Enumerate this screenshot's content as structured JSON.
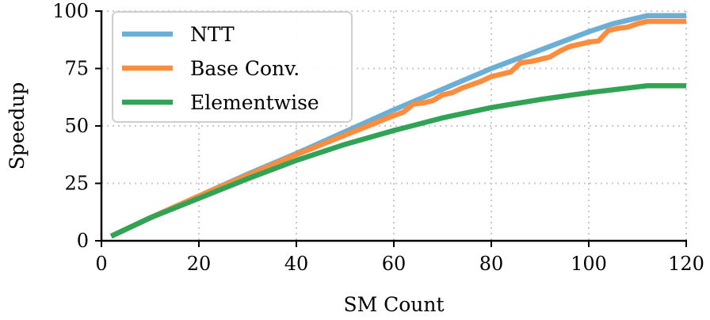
{
  "chart_data": {
    "type": "line",
    "title": "",
    "xlabel": "SM Count",
    "ylabel": "Speedup",
    "xlim": [
      0,
      120
    ],
    "ylim": [
      0,
      100
    ],
    "xticks": [
      0,
      20,
      40,
      60,
      80,
      100,
      120
    ],
    "yticks": [
      0,
      25,
      50,
      75,
      100
    ],
    "xtick_labels": [
      "0",
      "20",
      "40",
      "60",
      "80",
      "100",
      "120"
    ],
    "ytick_labels": [
      "0",
      "25",
      "50",
      "75",
      "100"
    ],
    "grid": true,
    "legend": "top-left",
    "series": [
      {
        "name": "NTT",
        "color": "#6baed6",
        "x": [
          2,
          10,
          20,
          30,
          40,
          50,
          60,
          70,
          80,
          90,
          100,
          105,
          110,
          112,
          115,
          120
        ],
        "y": [
          2,
          10,
          19.5,
          29,
          38,
          47.5,
          57,
          66,
          75,
          83,
          91,
          94.5,
          97,
          98,
          98,
          98
        ]
      },
      {
        "name": "Base Conv.",
        "color": "#fd8d3c",
        "x": [
          2,
          10,
          20,
          30,
          40,
          50,
          60,
          62,
          64,
          66,
          68,
          70,
          72,
          74,
          76,
          78,
          80,
          82,
          84,
          86,
          88,
          90,
          92,
          94,
          96,
          98,
          100,
          102,
          104,
          106,
          108,
          110,
          112,
          115,
          120
        ],
        "y": [
          2,
          10,
          19.5,
          28.5,
          37.5,
          46,
          54.5,
          56,
          59.5,
          60,
          61,
          63.5,
          64.5,
          66.5,
          68,
          69.5,
          71.5,
          72.5,
          73.5,
          77.5,
          78,
          79,
          80,
          82.5,
          84.5,
          85.5,
          86.5,
          87,
          91.5,
          92.5,
          93,
          94.5,
          95.5,
          95.5,
          95.5
        ]
      },
      {
        "name": "Elementwise",
        "color": "#31a354",
        "x": [
          2,
          10,
          20,
          30,
          40,
          50,
          60,
          70,
          80,
          90,
          100,
          110,
          112,
          115,
          120
        ],
        "y": [
          2,
          10,
          18.5,
          27,
          35,
          42,
          48,
          53.5,
          58,
          61.5,
          64.5,
          67,
          67.5,
          67.5,
          67.5
        ]
      }
    ]
  }
}
